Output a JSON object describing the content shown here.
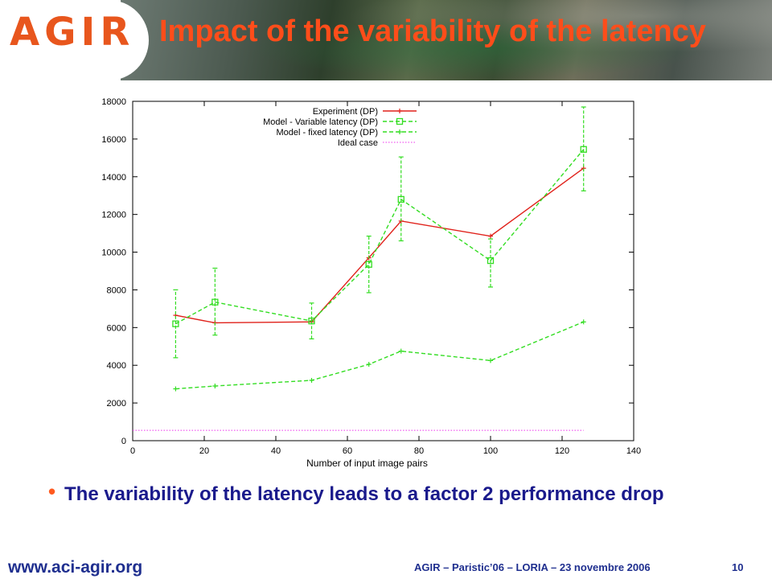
{
  "header": {
    "logo_text": "AGIR",
    "title": "Impact of the variability of the latency"
  },
  "chart_data": {
    "type": "line",
    "title": "",
    "xlabel": "Number of input image pairs",
    "ylabel": "",
    "xlim": [
      0,
      140
    ],
    "ylim": [
      0,
      18000
    ],
    "xticks": [
      0,
      20,
      40,
      60,
      80,
      100,
      120,
      140
    ],
    "yticks": [
      0,
      2000,
      4000,
      6000,
      8000,
      10000,
      12000,
      14000,
      16000,
      18000
    ],
    "legend_position": "top-right",
    "grid": false,
    "series": [
      {
        "name": "Experiment (DP)",
        "color": "#e0211a",
        "marker": "plus",
        "x": [
          12,
          23,
          50,
          66,
          75,
          100,
          126
        ],
        "y": [
          6650,
          6250,
          6300,
          9700,
          11650,
          10850,
          14450
        ]
      },
      {
        "name": "Model - Variable latency (DP)",
        "color": "#33dd22",
        "marker": "square",
        "x": [
          12,
          23,
          50,
          66,
          75,
          100,
          126
        ],
        "y": [
          6200,
          7350,
          6350,
          9350,
          12800,
          9550,
          15450
        ],
        "err_low": [
          4400,
          5600,
          5400,
          7850,
          10600,
          8150,
          13250
        ],
        "err_high": [
          8000,
          9150,
          7300,
          10850,
          15050,
          10700,
          17700
        ]
      },
      {
        "name": "Model - fixed latency (DP)",
        "color": "#33dd22",
        "marker": "plus",
        "x": [
          12,
          23,
          50,
          66,
          75,
          100,
          126
        ],
        "y": [
          2750,
          2900,
          3200,
          4050,
          4750,
          4250,
          6300
        ]
      },
      {
        "name": "Ideal case",
        "color": "#ee33ee",
        "marker": "none",
        "x": [
          0,
          126
        ],
        "y": [
          550,
          550
        ]
      }
    ]
  },
  "bullet": {
    "text": "The variability of the latency leads to a factor 2 performance drop"
  },
  "footer": {
    "site": "www.aci-agir.org",
    "conference": "AGIR – Paristic’06 – LORIA – 23 novembre 2006",
    "page": "10"
  }
}
